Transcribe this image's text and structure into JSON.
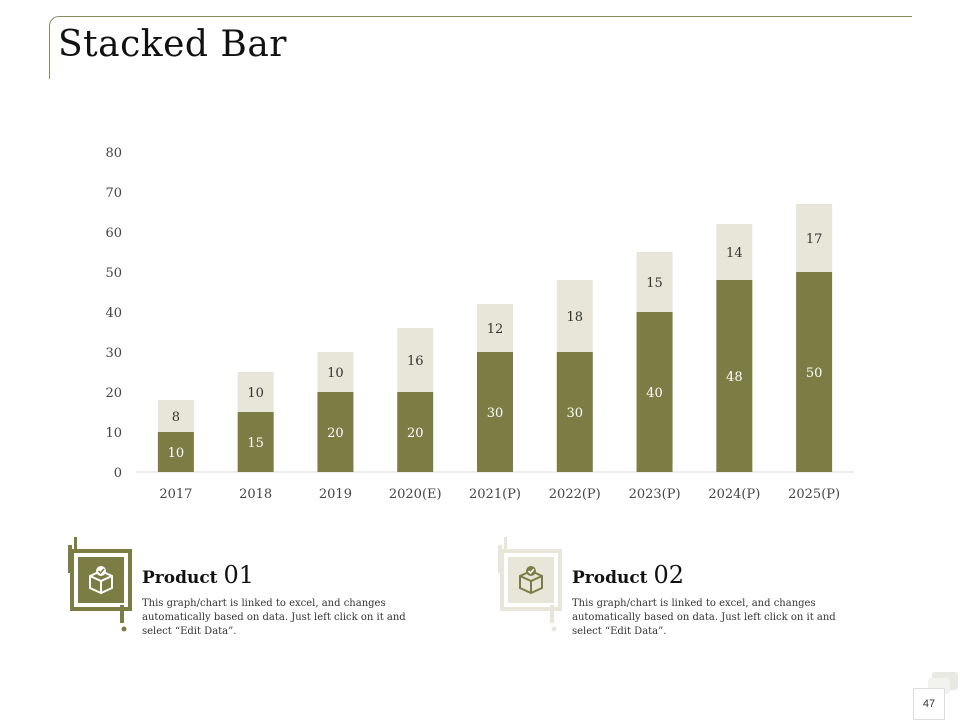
{
  "title": "Stacked Bar",
  "page_number": "47",
  "colors": {
    "series1": "#7b7d45",
    "series2": "#e7e6d8",
    "accent": "#7b7d45",
    "accent_light": "#e7e6d8"
  },
  "chart_data": {
    "type": "bar",
    "stacked": true,
    "categories": [
      "2017",
      "2018",
      "2019",
      "2020(E)",
      "2021(P)",
      "2022(P)",
      "2023(P)",
      "2024(P)",
      "2025(P)"
    ],
    "series": [
      {
        "name": "Product 01",
        "values": [
          10,
          15,
          20,
          20,
          30,
          30,
          40,
          48,
          50
        ]
      },
      {
        "name": "Product 02",
        "values": [
          8,
          10,
          10,
          16,
          12,
          18,
          15,
          14,
          17
        ]
      }
    ],
    "yticks": [
      "0",
      "10",
      "20",
      "30",
      "40",
      "50",
      "60",
      "70",
      "80"
    ],
    "ylim": [
      0,
      80
    ],
    "grid": false,
    "xlabel": "",
    "ylabel": ""
  },
  "legend": [
    {
      "title": "Product",
      "number": "01",
      "icon": "box-check-icon",
      "description": "This graph/chart  is linked to excel, and changes automatically based on data. Just left click on it and select “Edit Data”."
    },
    {
      "title": "Product",
      "number": "02",
      "icon": "box-check-icon",
      "description": "This graph/chart  is linked to excel, and changes automatically based on data. Just left click on it and select “Edit Data”."
    }
  ]
}
